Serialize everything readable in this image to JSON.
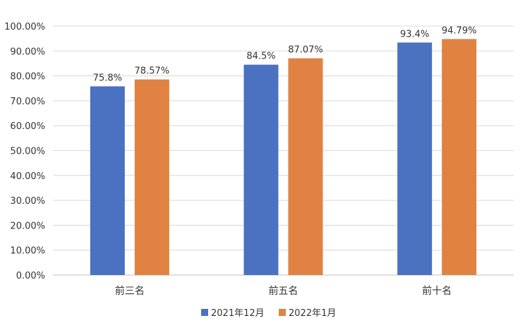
{
  "chart_data": {
    "type": "bar",
    "categories": [
      "前三名",
      "前五名",
      "前十名"
    ],
    "series": [
      {
        "name": "2021年12月",
        "values": [
          75.8,
          84.5,
          93.4
        ],
        "labels": [
          "75.8%",
          "84.5%",
          "93.4%"
        ],
        "color": "#4a72c0"
      },
      {
        "name": "2022年1月",
        "values": [
          78.57,
          87.07,
          94.79
        ],
        "labels": [
          "78.57%",
          "87.07%",
          "94.79%"
        ],
        "color": "#e08242"
      }
    ],
    "ylim": [
      0,
      100
    ],
    "yticks": [
      0,
      10,
      20,
      30,
      40,
      50,
      60,
      70,
      80,
      90,
      100
    ],
    "ytick_labels": [
      "0.00%",
      "10.00%",
      "20.00%",
      "30.00%",
      "40.00%",
      "50.00%",
      "60.00%",
      "70.00%",
      "80.00%",
      "90.00%",
      "100.00%"
    ],
    "grid": true,
    "legend_position": "bottom"
  }
}
